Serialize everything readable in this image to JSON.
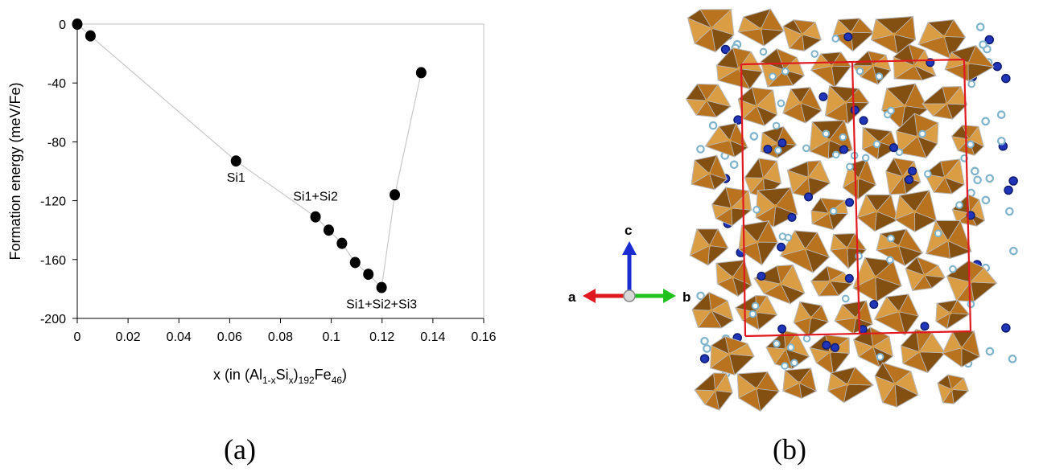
{
  "chart_data": {
    "type": "scatter",
    "xlabel": {
      "main": "x (in (Al",
      "sub1": "1-x",
      "mid1": "Si",
      "sub2": "x",
      "mid2": ")",
      "sub3": "192",
      "mid3": "Fe",
      "sub4": "46",
      "end": ")"
    },
    "ylabel": "Formation energy (meV/Fe)",
    "xlim": [
      0,
      0.16
    ],
    "ylim": [
      -200,
      0
    ],
    "xticks": [
      "0",
      "0.02",
      "0.04",
      "0.06",
      "0.08",
      "0.1",
      "0.12",
      "0.14",
      "0.16"
    ],
    "yticks": [
      "0",
      "-40",
      "-80",
      "-120",
      "-160",
      "-200"
    ],
    "grid": false,
    "points": [
      {
        "x": 0.0,
        "y": 0
      },
      {
        "x": 0.0052,
        "y": -8
      },
      {
        "x": 0.0625,
        "y": -93
      },
      {
        "x": 0.0938,
        "y": -131
      },
      {
        "x": 0.099,
        "y": -140
      },
      {
        "x": 0.1042,
        "y": -149
      },
      {
        "x": 0.1094,
        "y": -162
      },
      {
        "x": 0.1146,
        "y": -170
      },
      {
        "x": 0.1198,
        "y": -179
      },
      {
        "x": 0.125,
        "y": -116
      },
      {
        "x": 0.1354,
        "y": -33
      }
    ],
    "connect_order": [
      0,
      1,
      2,
      3,
      4,
      5,
      6,
      7,
      8,
      9,
      10
    ],
    "annotations": [
      {
        "text": "Si1",
        "x": 0.0625,
        "y": -93
      },
      {
        "text": "Si1+Si2",
        "x": 0.0938,
        "y": -131
      },
      {
        "text": "Si1+Si2+Si3",
        "x": 0.1198,
        "y": -179
      }
    ],
    "line_color": "#c8c8c8",
    "marker_color": "#000000"
  },
  "crystal": {
    "axis_labels": {
      "a": "a",
      "b": "b",
      "c": "c"
    },
    "colors": {
      "polyhedra": "#b8731f",
      "polyhedra_light": "#e0a44a",
      "polyhedra_dark": "#7a4a10",
      "edges": "#b9b9b9",
      "fe_atom": "#2035b8",
      "si_atom": "#7fb3cc",
      "cell": "#e0181f",
      "axis_a": "#e0181f",
      "axis_b": "#1fc21f",
      "axis_c": "#1a2cd0"
    }
  },
  "captions": {
    "a": "(a)",
    "b": "(b)"
  }
}
